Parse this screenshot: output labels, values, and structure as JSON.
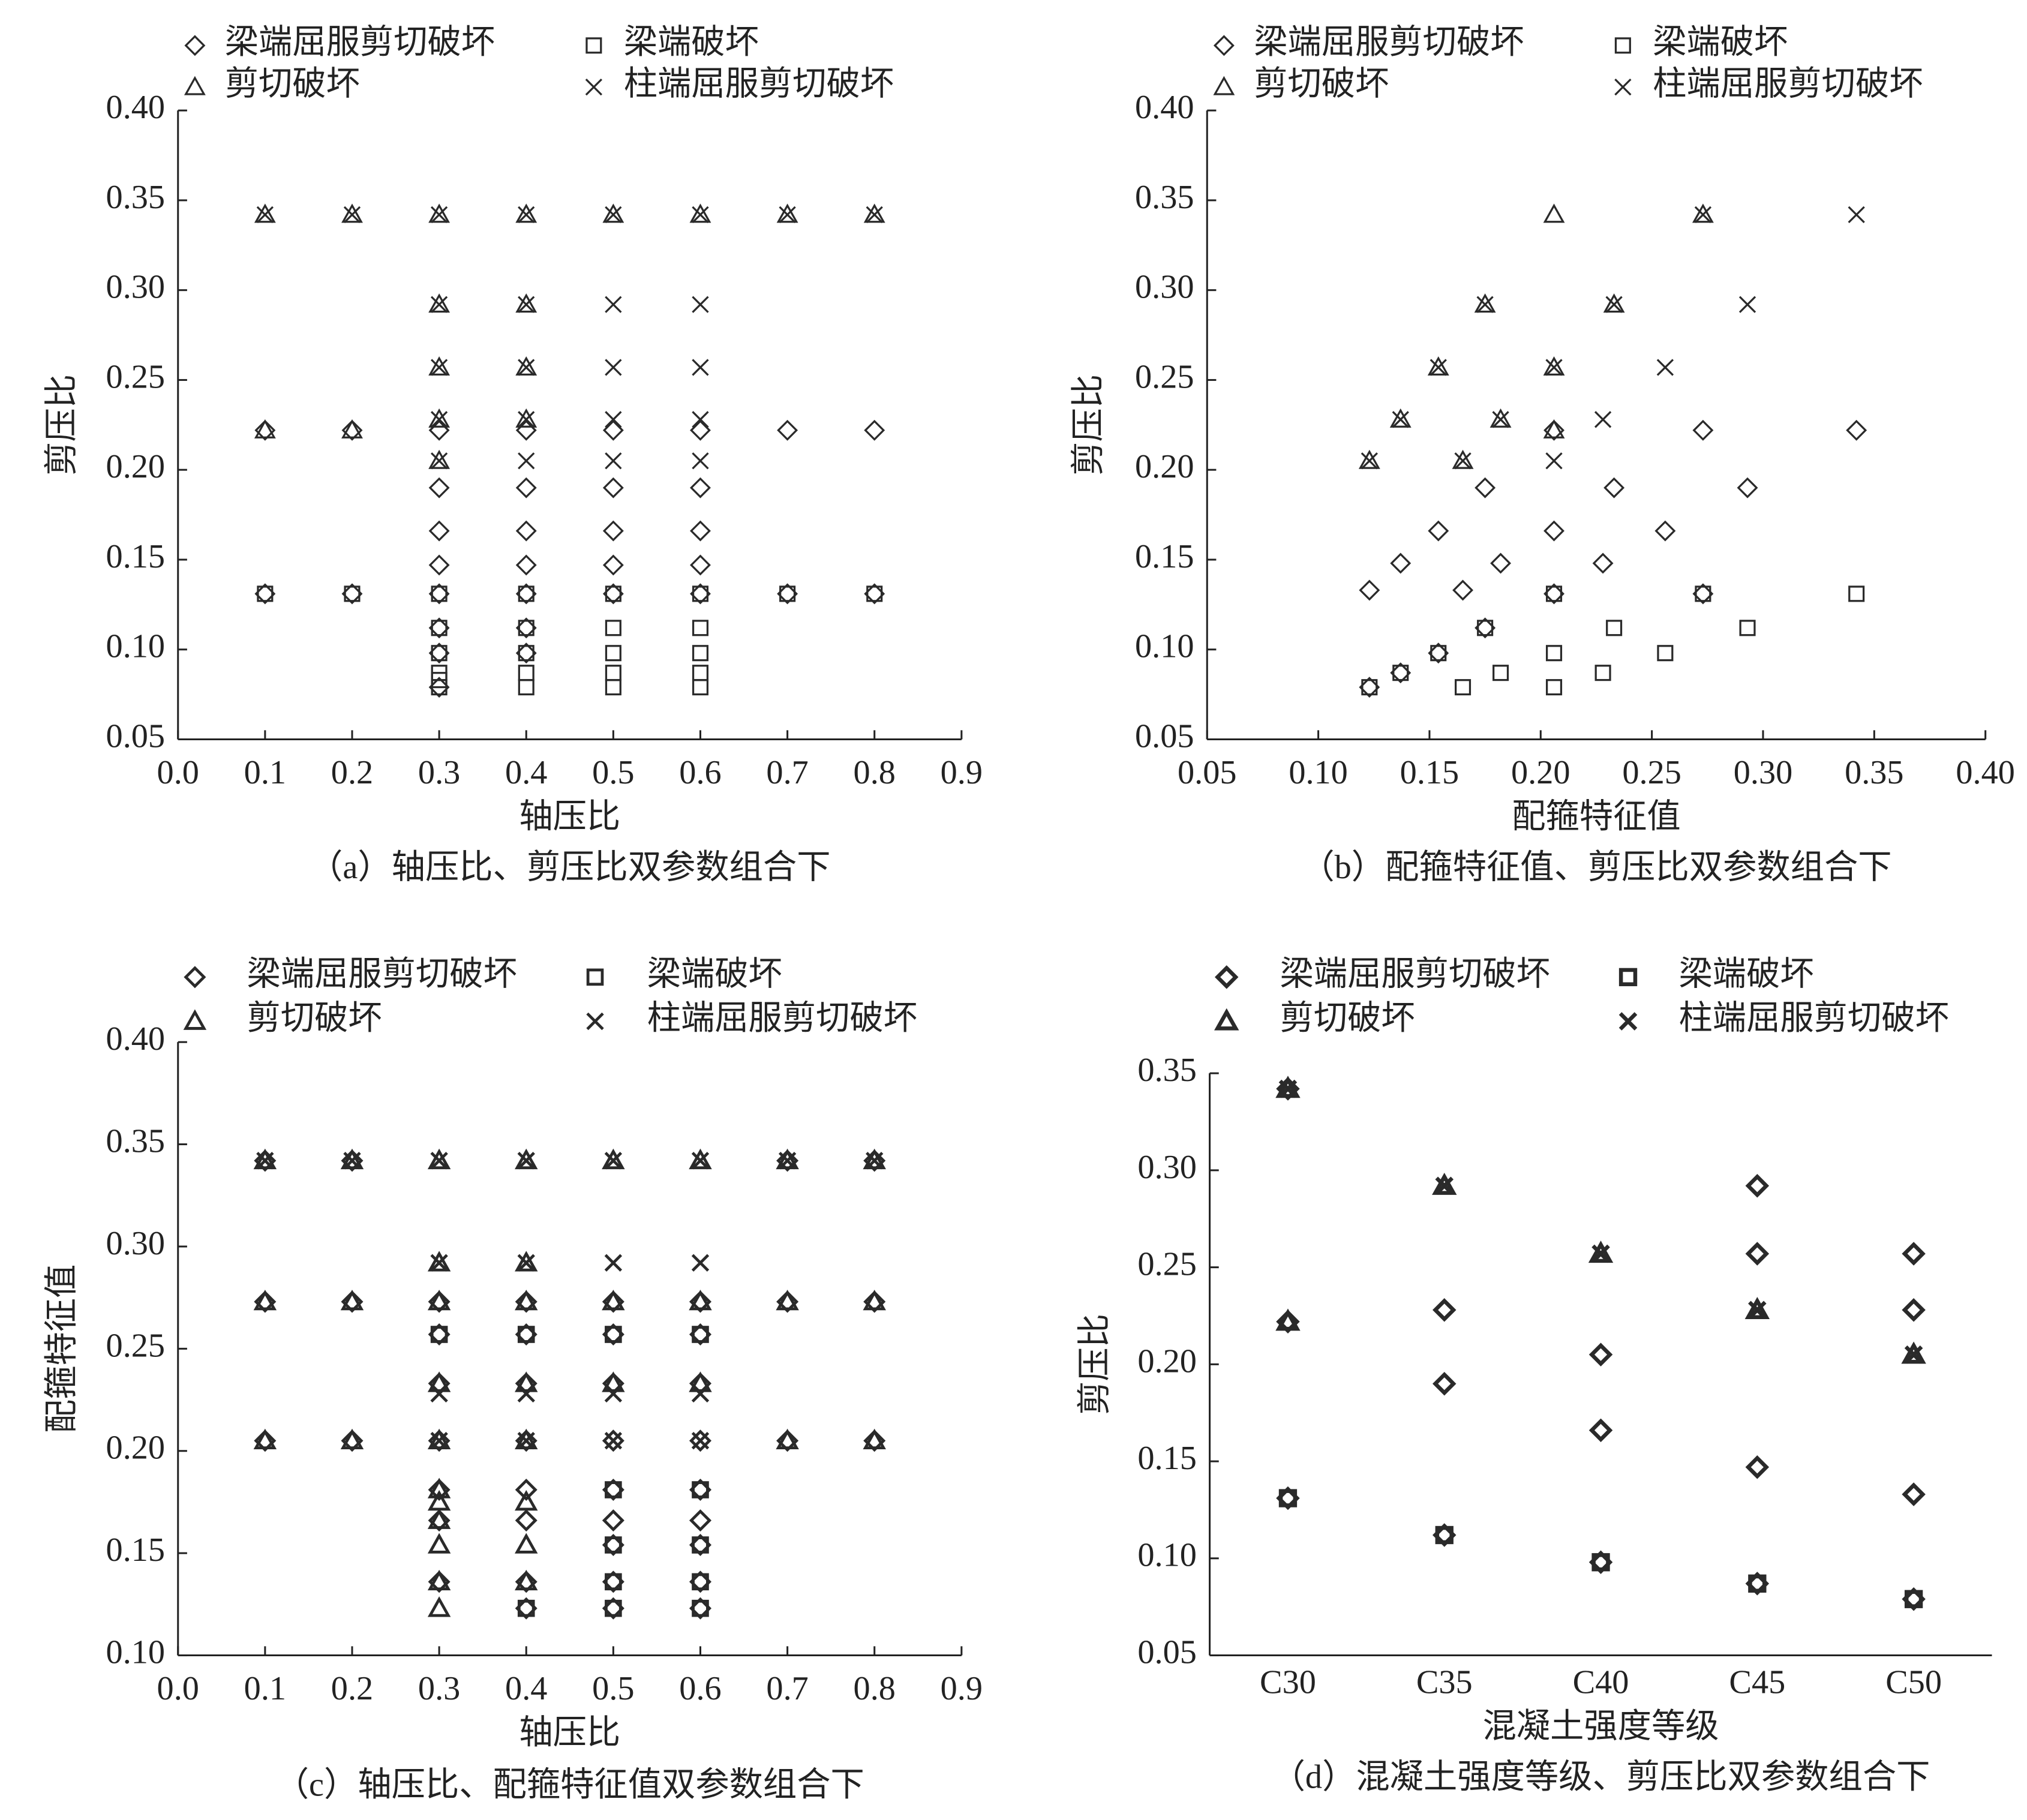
{
  "chart_data": [
    {
      "type": "scatter",
      "caption": "（a）轴压比、剪压比双参数组合下",
      "xlabel": "轴压比",
      "ylabel": "剪压比",
      "xlim": [
        0,
        0.9
      ],
      "ylim": [
        0.05,
        0.4
      ],
      "xticks": [
        {
          "value": 0,
          "label": "0.0"
        },
        0.1,
        0.2,
        0.3,
        0.4,
        0.5,
        0.6,
        0.7,
        0.8,
        0.9
      ],
      "yticks": [
        0.05,
        {
          "value": 0.1,
          "label": "0.10"
        },
        0.15,
        {
          "value": 0.2,
          "label": "0.20"
        },
        0.25,
        {
          "value": 0.3,
          "label": "0.30"
        },
        0.35,
        {
          "value": 0.4,
          "label": "0.40"
        }
      ],
      "series": [
        {
          "name": "梁端屈服剪切破坏",
          "marker": "diamond",
          "color": "#2a2a2a",
          "x": [
            0.1,
            0.1,
            0.2,
            0.2,
            0.3,
            0.3,
            0.3,
            0.3,
            0.3,
            0.3,
            0.3,
            0.3,
            0.4,
            0.4,
            0.4,
            0.4,
            0.4,
            0.4,
            0.4,
            0.5,
            0.5,
            0.5,
            0.5,
            0.5,
            0.6,
            0.6,
            0.6,
            0.6,
            0.6,
            0.7,
            0.7,
            0.8,
            0.8
          ],
          "values": [
            0.222,
            0.131,
            0.222,
            0.131,
            0.222,
            0.19,
            0.166,
            0.147,
            0.131,
            0.112,
            0.098,
            0.079,
            0.222,
            0.19,
            0.166,
            0.147,
            0.131,
            0.112,
            0.098,
            0.222,
            0.19,
            0.166,
            0.147,
            0.131,
            0.222,
            0.19,
            0.166,
            0.147,
            0.131,
            0.222,
            0.131,
            0.222,
            0.131
          ]
        },
        {
          "name": "梁端破坏",
          "marker": "square",
          "color": "#2a2a2a",
          "x": [
            0.1,
            0.2,
            0.3,
            0.3,
            0.3,
            0.3,
            0.3,
            0.3,
            0.4,
            0.4,
            0.4,
            0.4,
            0.4,
            0.5,
            0.5,
            0.5,
            0.5,
            0.5,
            0.6,
            0.6,
            0.6,
            0.6,
            0.6,
            0.7,
            0.8
          ],
          "values": [
            0.131,
            0.131,
            0.131,
            0.112,
            0.098,
            0.087,
            0.083,
            0.079,
            0.131,
            0.112,
            0.098,
            0.087,
            0.079,
            0.131,
            0.112,
            0.098,
            0.087,
            0.079,
            0.131,
            0.112,
            0.098,
            0.087,
            0.079,
            0.131,
            0.131
          ]
        },
        {
          "name": "剪切破坏",
          "marker": "triangle",
          "color": "#2a2a2a",
          "x": [
            0.1,
            0.1,
            0.2,
            0.2,
            0.3,
            0.3,
            0.3,
            0.3,
            0.3,
            0.4,
            0.4,
            0.4,
            0.4,
            0.5,
            0.6,
            0.7,
            0.8
          ],
          "values": [
            0.342,
            0.222,
            0.342,
            0.222,
            0.342,
            0.292,
            0.257,
            0.228,
            0.205,
            0.342,
            0.292,
            0.257,
            0.228,
            0.342,
            0.342,
            0.342,
            0.342
          ]
        },
        {
          "name": "柱端屈服剪切破坏",
          "marker": "cross",
          "color": "#2a2a2a",
          "x": [
            0.1,
            0.2,
            0.3,
            0.3,
            0.3,
            0.3,
            0.3,
            0.4,
            0.4,
            0.4,
            0.4,
            0.4,
            0.5,
            0.5,
            0.5,
            0.5,
            0.5,
            0.6,
            0.6,
            0.6,
            0.6,
            0.6,
            0.7,
            0.8
          ],
          "values": [
            0.342,
            0.342,
            0.342,
            0.292,
            0.257,
            0.228,
            0.205,
            0.342,
            0.292,
            0.257,
            0.228,
            0.205,
            0.342,
            0.292,
            0.257,
            0.228,
            0.205,
            0.342,
            0.292,
            0.257,
            0.228,
            0.205,
            0.342,
            0.342
          ]
        }
      ]
    },
    {
      "type": "scatter",
      "caption": "（b）配箍特征值、剪压比双参数组合下",
      "xlabel": "配箍特征值",
      "ylabel": "剪压比",
      "xlim": [
        0.05,
        0.4
      ],
      "ylim": [
        0.05,
        0.4
      ],
      "xticks": [
        0.05,
        {
          "value": 0.1,
          "label": "0.10"
        },
        0.15,
        {
          "value": 0.2,
          "label": "0.20"
        },
        0.25,
        {
          "value": 0.3,
          "label": "0.30"
        },
        0.35,
        {
          "value": 0.4,
          "label": "0.40"
        }
      ],
      "yticks": [
        0.05,
        {
          "value": 0.1,
          "label": "0.10"
        },
        0.15,
        {
          "value": 0.2,
          "label": "0.20"
        },
        0.25,
        {
          "value": 0.3,
          "label": "0.30"
        },
        0.35,
        {
          "value": 0.4,
          "label": "0.40"
        }
      ],
      "series": [
        {
          "name": "梁端屈服剪切破坏",
          "marker": "diamond",
          "color": "#2a2a2a",
          "x": [
            0.123,
            0.137,
            0.154,
            0.165,
            0.175,
            0.182,
            0.206,
            0.206,
            0.206,
            0.228,
            0.233,
            0.256,
            0.273,
            0.293,
            0.342,
            0.123,
            0.137,
            0.154,
            0.175,
            0.273
          ],
          "values": [
            0.133,
            0.148,
            0.166,
            0.133,
            0.19,
            0.148,
            0.166,
            0.131,
            0.222,
            0.148,
            0.19,
            0.166,
            0.222,
            0.19,
            0.222,
            0.079,
            0.087,
            0.098,
            0.112,
            0.131
          ]
        },
        {
          "name": "梁端破坏",
          "marker": "square",
          "color": "#2a2a2a",
          "x": [
            0.123,
            0.137,
            0.154,
            0.165,
            0.175,
            0.182,
            0.206,
            0.206,
            0.206,
            0.228,
            0.233,
            0.256,
            0.273,
            0.293,
            0.342
          ],
          "values": [
            0.079,
            0.087,
            0.098,
            0.079,
            0.112,
            0.087,
            0.098,
            0.079,
            0.131,
            0.087,
            0.112,
            0.098,
            0.131,
            0.112,
            0.131
          ]
        },
        {
          "name": "剪切破坏",
          "marker": "triangle",
          "color": "#2a2a2a",
          "x": [
            0.123,
            0.137,
            0.154,
            0.165,
            0.175,
            0.182,
            0.206,
            0.206,
            0.206,
            0.233,
            0.273
          ],
          "values": [
            0.205,
            0.228,
            0.257,
            0.205,
            0.292,
            0.228,
            0.257,
            0.342,
            0.222,
            0.292,
            0.342
          ]
        },
        {
          "name": "柱端屈服剪切破坏",
          "marker": "cross",
          "color": "#2a2a2a",
          "x": [
            0.123,
            0.137,
            0.154,
            0.165,
            0.175,
            0.182,
            0.206,
            0.206,
            0.228,
            0.233,
            0.256,
            0.273,
            0.293,
            0.342
          ],
          "values": [
            0.205,
            0.228,
            0.257,
            0.205,
            0.292,
            0.228,
            0.257,
            0.205,
            0.228,
            0.292,
            0.257,
            0.342,
            0.292,
            0.342
          ]
        }
      ]
    },
    {
      "type": "scatter",
      "caption": "（c）轴压比、配箍特征值双参数组合下",
      "xlabel": "轴压比",
      "ylabel": "配箍特征值",
      "xlim": [
        0,
        0.9
      ],
      "ylim": [
        0.1,
        0.4
      ],
      "xticks": [
        {
          "value": 0,
          "label": "0.0"
        },
        0.1,
        0.2,
        0.3,
        0.4,
        0.5,
        0.6,
        0.7,
        0.8,
        0.9
      ],
      "yticks": [
        {
          "value": 0.1,
          "label": "0.10"
        },
        0.15,
        {
          "value": 0.2,
          "label": "0.20"
        },
        0.25,
        {
          "value": 0.3,
          "label": "0.30"
        },
        0.35,
        {
          "value": 0.4,
          "label": "0.40"
        }
      ],
      "series": [
        {
          "name": "梁端屈服剪切破坏",
          "marker": "diamond",
          "color": "#2a2a2a",
          "x": [
            0.1,
            0.1,
            0.1,
            0.2,
            0.2,
            0.2,
            0.3,
            0.3,
            0.3,
            0.3,
            0.3,
            0.3,
            0.3,
            0.4,
            0.4,
            0.4,
            0.4,
            0.4,
            0.4,
            0.4,
            0.4,
            0.5,
            0.5,
            0.5,
            0.5,
            0.5,
            0.5,
            0.5,
            0.5,
            0.5,
            0.6,
            0.6,
            0.6,
            0.6,
            0.6,
            0.6,
            0.6,
            0.6,
            0.6,
            0.7,
            0.7,
            0.7,
            0.8,
            0.8,
            0.8
          ],
          "values": [
            0.342,
            0.273,
            0.205,
            0.342,
            0.273,
            0.205,
            0.273,
            0.257,
            0.233,
            0.205,
            0.181,
            0.166,
            0.136,
            0.273,
            0.257,
            0.233,
            0.205,
            0.181,
            0.166,
            0.136,
            0.123,
            0.273,
            0.257,
            0.233,
            0.205,
            0.181,
            0.166,
            0.154,
            0.136,
            0.123,
            0.273,
            0.257,
            0.233,
            0.205,
            0.181,
            0.166,
            0.154,
            0.136,
            0.123,
            0.342,
            0.273,
            0.205,
            0.342,
            0.273,
            0.205
          ]
        },
        {
          "name": "梁端破坏",
          "marker": "square",
          "color": "#2a2a2a",
          "x": [
            0.3,
            0.4,
            0.4,
            0.5,
            0.5,
            0.5,
            0.5,
            0.5,
            0.6,
            0.6,
            0.6,
            0.6,
            0.6
          ],
          "values": [
            0.257,
            0.257,
            0.123,
            0.257,
            0.181,
            0.154,
            0.136,
            0.123,
            0.257,
            0.181,
            0.154,
            0.136,
            0.123
          ]
        },
        {
          "name": "剪切破坏",
          "marker": "triangle",
          "color": "#2a2a2a",
          "x": [
            0.1,
            0.1,
            0.1,
            0.2,
            0.2,
            0.2,
            0.3,
            0.3,
            0.3,
            0.3,
            0.3,
            0.3,
            0.3,
            0.3,
            0.3,
            0.3,
            0.3,
            0.4,
            0.4,
            0.4,
            0.4,
            0.4,
            0.4,
            0.4,
            0.4,
            0.5,
            0.5,
            0.5,
            0.6,
            0.6,
            0.6,
            0.7,
            0.7,
            0.7,
            0.8,
            0.8,
            0.8
          ],
          "values": [
            0.342,
            0.273,
            0.205,
            0.342,
            0.273,
            0.205,
            0.342,
            0.292,
            0.273,
            0.233,
            0.205,
            0.181,
            0.175,
            0.166,
            0.154,
            0.136,
            0.123,
            0.342,
            0.292,
            0.273,
            0.233,
            0.205,
            0.175,
            0.154,
            0.136,
            0.342,
            0.273,
            0.233,
            0.342,
            0.273,
            0.233,
            0.342,
            0.273,
            0.205,
            0.342,
            0.273,
            0.205
          ]
        },
        {
          "name": "柱端屈服剪切破坏",
          "marker": "cross",
          "color": "#2a2a2a",
          "x": [
            0.1,
            0.2,
            0.3,
            0.3,
            0.3,
            0.3,
            0.4,
            0.4,
            0.4,
            0.4,
            0.5,
            0.5,
            0.5,
            0.5,
            0.6,
            0.6,
            0.6,
            0.6,
            0.7,
            0.8
          ],
          "values": [
            0.342,
            0.342,
            0.342,
            0.292,
            0.228,
            0.205,
            0.342,
            0.292,
            0.228,
            0.205,
            0.342,
            0.292,
            0.228,
            0.205,
            0.342,
            0.292,
            0.228,
            0.205,
            0.342,
            0.342
          ]
        }
      ]
    },
    {
      "type": "scatter",
      "caption": "（d）混凝土强度等级、剪压比双参数组合下",
      "xlabel": "混凝土强度等级",
      "ylabel": "剪压比",
      "categories": [
        "C30",
        "C35",
        "C40",
        "C45",
        "C50"
      ],
      "ylim": [
        0.05,
        0.35
      ],
      "yticks": [
        0.05,
        {
          "value": 0.1,
          "label": "0.10"
        },
        0.15,
        {
          "value": 0.2,
          "label": "0.20"
        },
        0.25,
        {
          "value": 0.3,
          "label": "0.30"
        },
        0.35
      ],
      "series": [
        {
          "name": "梁端屈服剪切破坏",
          "marker": "diamond",
          "color": "#2a2a2a",
          "x": [
            "C30",
            "C30",
            "C30",
            "C35",
            "C35",
            "C35",
            "C40",
            "C40",
            "C40",
            "C45",
            "C45",
            "C45",
            "C45",
            "C50",
            "C50",
            "C50",
            "C50"
          ],
          "values": [
            0.342,
            0.222,
            0.131,
            0.228,
            0.19,
            0.112,
            0.205,
            0.166,
            0.098,
            0.292,
            0.257,
            0.147,
            0.087,
            0.257,
            0.228,
            0.133,
            0.079
          ]
        },
        {
          "name": "梁端破坏",
          "marker": "square",
          "color": "#2a2a2a",
          "x": [
            "C30",
            "C35",
            "C40",
            "C45",
            "C50"
          ],
          "values": [
            0.131,
            0.112,
            0.098,
            0.087,
            0.079
          ]
        },
        {
          "name": "剪切破坏",
          "marker": "triangle",
          "color": "#2a2a2a",
          "x": [
            "C30",
            "C30",
            "C35",
            "C40",
            "C45",
            "C50"
          ],
          "values": [
            0.342,
            0.222,
            0.292,
            0.257,
            0.228,
            0.205
          ]
        },
        {
          "name": "柱端屈服剪切破坏",
          "marker": "cross",
          "color": "#2a2a2a",
          "x": [
            "C30",
            "C35",
            "C40",
            "C45",
            "C50"
          ],
          "values": [
            0.342,
            0.292,
            0.257,
            0.228,
            0.205
          ]
        }
      ]
    }
  ]
}
